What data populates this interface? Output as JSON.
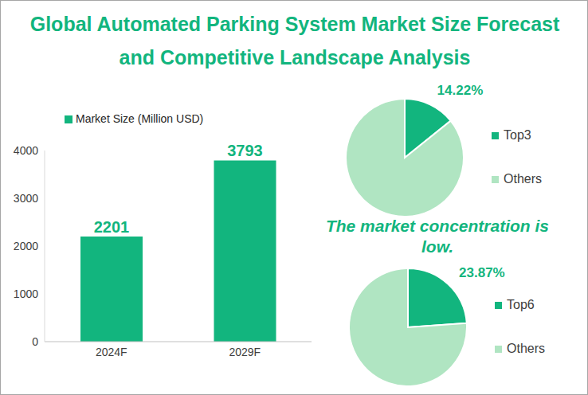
{
  "title": "Global Automated Parking System Market Size Forecast and Competitive Landscape Analysis",
  "annotation": "The market concentration is low.",
  "chart_data": [
    {
      "type": "bar",
      "categories": [
        "2024F",
        "2029F"
      ],
      "series": [
        {
          "name": "Market Size (Million USD)",
          "color": "#12B57E",
          "values": [
            2201,
            3793
          ]
        }
      ],
      "ylim": [
        0,
        4000
      ],
      "yticks": [
        0,
        1000,
        2000,
        3000,
        4000
      ],
      "grid": false,
      "data_labels": true,
      "legend": "top left"
    },
    {
      "type": "pie",
      "categories": [
        "Top3",
        "Others"
      ],
      "values": [
        14.22,
        85.78
      ],
      "value_labels": [
        "14.22%",
        null
      ],
      "colors": [
        "#12B57E",
        "#B0E5C2"
      ],
      "data_labels": true,
      "legend": "right"
    },
    {
      "type": "pie",
      "categories": [
        "Top6",
        "Others"
      ],
      "values": [
        23.87,
        76.13
      ],
      "value_labels": [
        "23.87%",
        null
      ],
      "colors": [
        "#12B57E",
        "#B0E5C2"
      ],
      "data_labels": true,
      "legend": "right"
    }
  ]
}
